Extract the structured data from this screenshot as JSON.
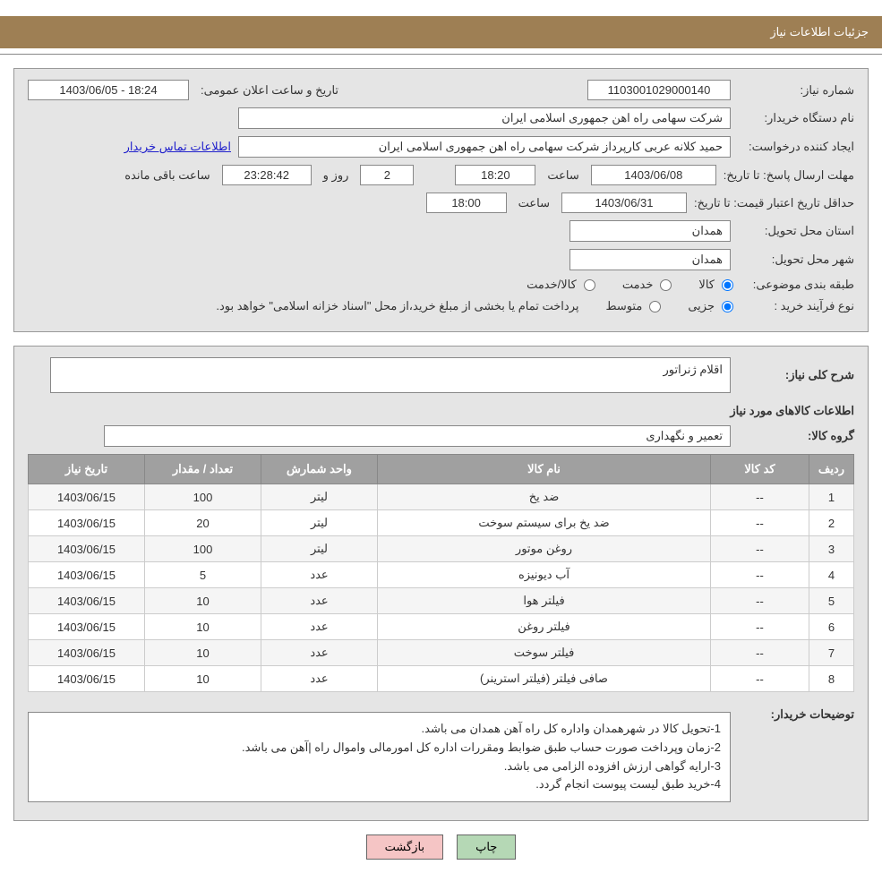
{
  "header": {
    "title": "جزئیات اطلاعات نیاز"
  },
  "form": {
    "request_number_label": "شماره نیاز:",
    "request_number": "1103001029000140",
    "announce_datetime_label": "تاریخ و ساعت اعلان عمومی:",
    "announce_datetime": "1403/06/05 - 18:24",
    "buyer_org_label": "نام دستگاه خریدار:",
    "buyer_org": "شرکت سهامی راه اهن جمهوری اسلامی ایران",
    "requester_label": "ایجاد کننده درخواست:",
    "requester": "حمید کلانه عربی کارپرداز شرکت سهامی راه اهن جمهوری اسلامی ایران",
    "contact_link": "اطلاعات تماس خریدار",
    "deadline_label": "مهلت ارسال پاسخ:",
    "until_date_label": "تا تاریخ:",
    "deadline_date": "1403/06/08",
    "hour_label": "ساعت",
    "deadline_hour": "18:20",
    "day_label": "روز و",
    "days_remaining": "2",
    "time_remaining": "23:28:42",
    "remaining_label": "ساعت باقی مانده",
    "validity_label": "حداقل تاریخ اعتبار قیمت:",
    "validity_date": "1403/06/31",
    "validity_hour": "18:00",
    "province_label": "استان محل تحویل:",
    "province": "همدان",
    "city_label": "شهر محل تحویل:",
    "city": "همدان",
    "category_label": "طبقه بندی موضوعی:",
    "category_goods": "کالا",
    "category_services": "خدمت",
    "category_goods_services": "کالا/خدمت",
    "process_label": "نوع فرآیند خرید :",
    "process_small": "جزیی",
    "process_medium": "متوسط",
    "process_note": "پرداخت تمام یا بخشی از مبلغ خرید،از محل \"اسناد خزانه اسلامی\" خواهد بود."
  },
  "need": {
    "overview_label": "شرح کلی نیاز:",
    "overview": "اقلام ژنراتور",
    "items_heading": "اطلاعات کالاهای مورد نیاز",
    "group_label": "گروه کالا:",
    "group": "تعمیر و نگهداری"
  },
  "table": {
    "columns": [
      "ردیف",
      "کد کالا",
      "نام کالا",
      "واحد شمارش",
      "تعداد / مقدار",
      "تاریخ نیاز"
    ],
    "column_widths": [
      "50px",
      "110px",
      "auto",
      "130px",
      "130px",
      "130px"
    ],
    "header_bg": "#a0a0a0",
    "header_fg": "#ffffff",
    "rows": [
      [
        "1",
        "--",
        "ضد یخ",
        "لیتر",
        "100",
        "1403/06/15"
      ],
      [
        "2",
        "--",
        "ضد یخ برای سیستم سوخت",
        "لیتر",
        "20",
        "1403/06/15"
      ],
      [
        "3",
        "--",
        "روغن موتور",
        "لیتر",
        "100",
        "1403/06/15"
      ],
      [
        "4",
        "--",
        "آب دیونیزه",
        "عدد",
        "5",
        "1403/06/15"
      ],
      [
        "5",
        "--",
        "فیلتر هوا",
        "عدد",
        "10",
        "1403/06/15"
      ],
      [
        "6",
        "--",
        "فیلتر روغن",
        "عدد",
        "10",
        "1403/06/15"
      ],
      [
        "7",
        "--",
        "فیلتر سوخت",
        "عدد",
        "10",
        "1403/06/15"
      ],
      [
        "8",
        "--",
        "صافی فیلتر (فیلتر استرینر)",
        "عدد",
        "10",
        "1403/06/15"
      ]
    ]
  },
  "notes": {
    "label": "توضیحات خریدار:",
    "line1": "1-تحویل کالا در شهرهمدان واداره کل راه آهن همدان می باشد.",
    "line2": "2-زمان وپرداخت صورت حساب طبق ضوابط ومقررات اداره کل امورمالی واموال راه |آهن می باشد.",
    "line3": "3-ارایه گواهی ارزش افزوده الزامی می باشد.",
    "line4": "4-خرید طبق لیست پیوست انجام گردد."
  },
  "buttons": {
    "print": "چاپ",
    "back": "بازگشت"
  },
  "colors": {
    "header_bg": "#9e7f54",
    "panel_bg": "#e5e5e5",
    "btn_print_bg": "#b5d8b5",
    "btn_back_bg": "#f5c5c5",
    "link_color": "#2020cc"
  }
}
